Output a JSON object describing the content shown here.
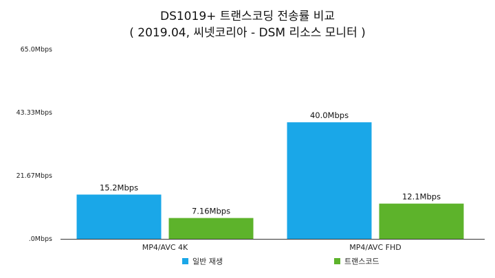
{
  "chart_data": {
    "type": "bar",
    "title": "DS1019+ 트랜스코딩 전송률 비교",
    "subtitle": "( 2019.04, 씨넷코리아 - DSM 리소스 모니터 )",
    "categories": [
      "MP4/AVC 4K",
      "MP4/AVC FHD"
    ],
    "series": [
      {
        "name": "일반 재생",
        "values": [
          15.2,
          40.0
        ],
        "labels": [
          "15.2Mbps",
          "40.0Mbps"
        ],
        "color": "#1aa7e8"
      },
      {
        "name": "트랜스코드",
        "values": [
          7.16,
          12.1
        ],
        "labels": [
          "7.16Mbps",
          "12.1Mbps"
        ],
        "color": "#5db32b"
      }
    ],
    "y_ticks": [
      0,
      21.67,
      43.33,
      65.0
    ],
    "y_tick_labels": [
      ".0Mbps",
      "21.67Mbps",
      "43.33Mbps",
      "65.0Mbps"
    ],
    "ylim": [
      0,
      65.0
    ],
    "xlabel": "",
    "ylabel": "",
    "grid": false,
    "legend_position": "bottom"
  }
}
